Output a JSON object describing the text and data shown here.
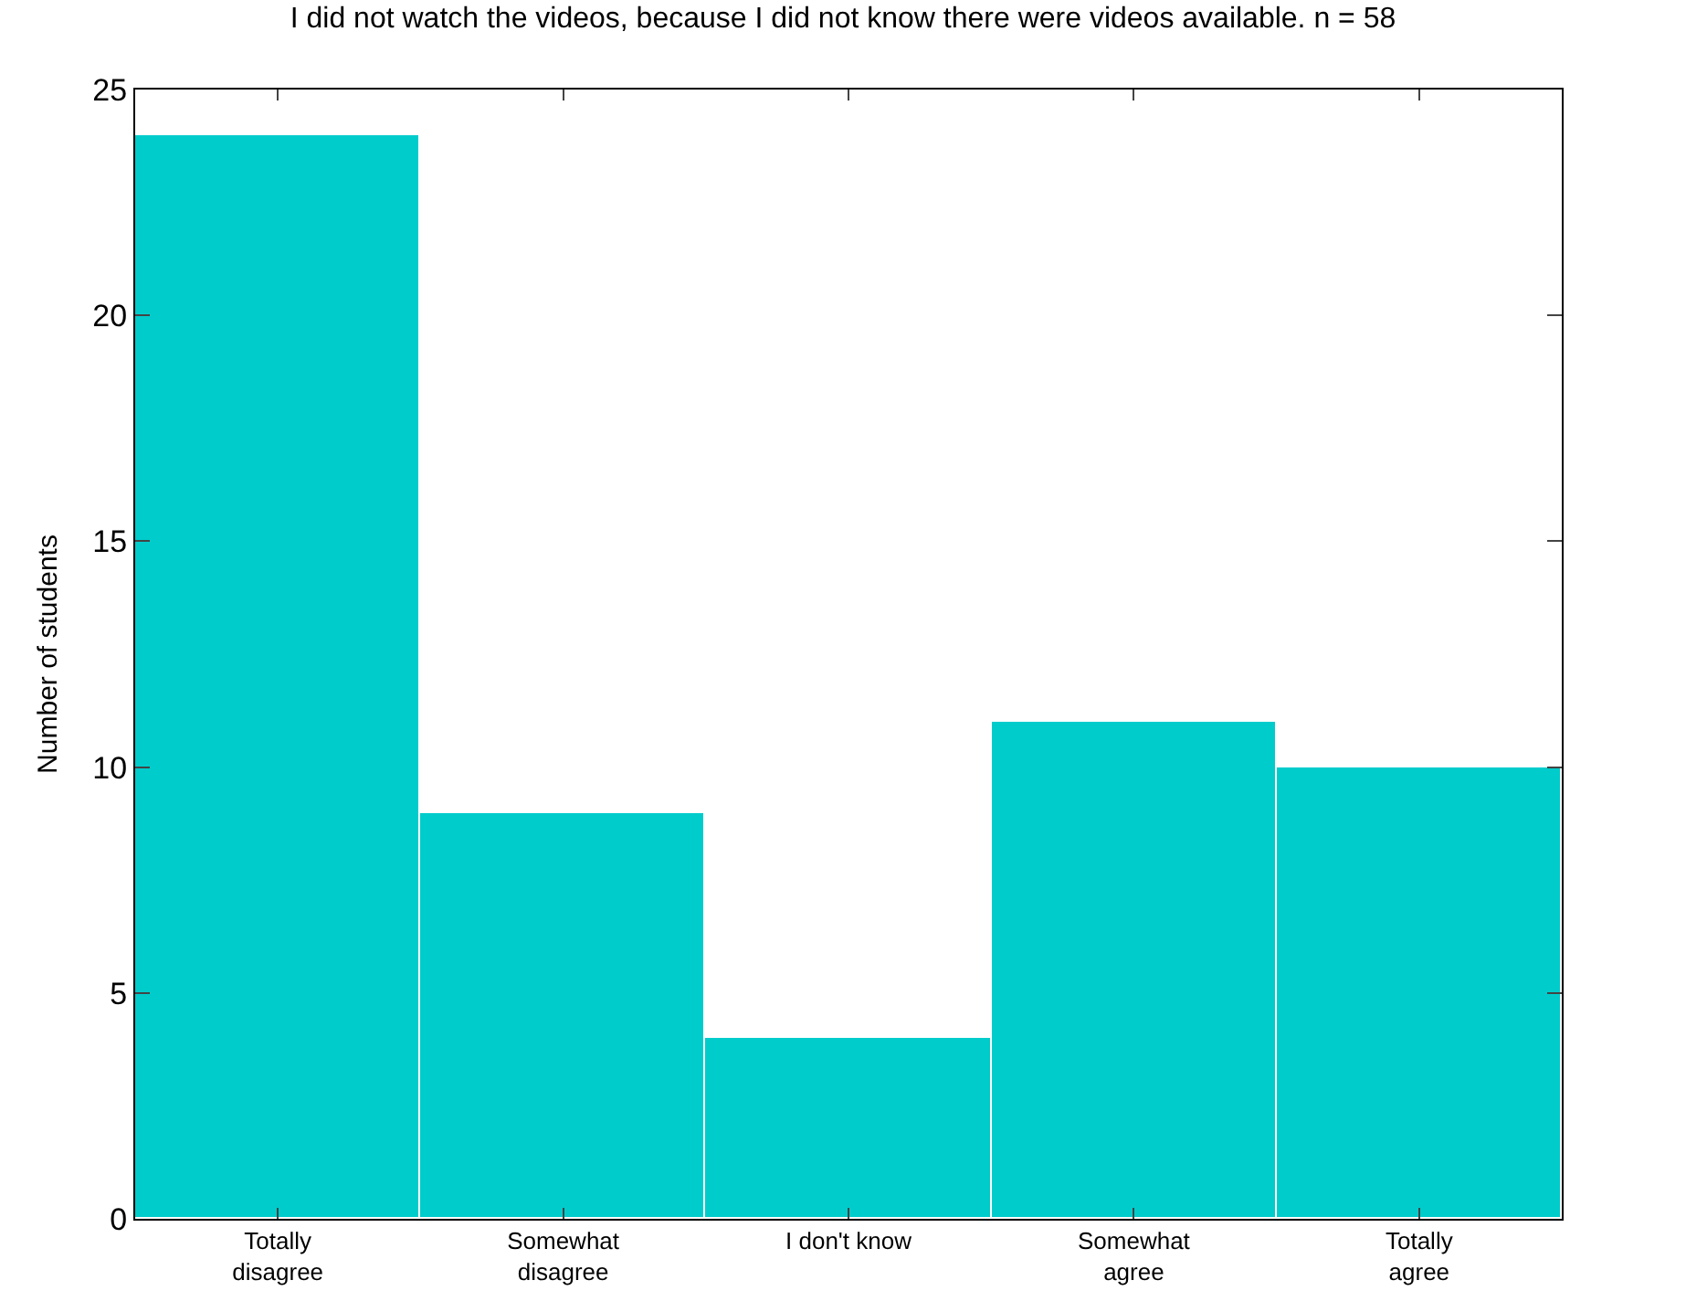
{
  "chart_data": {
    "type": "bar",
    "title": "I did not watch the videos, because I did not know there were videos available. n = 58",
    "ylabel": "Number of students",
    "categories": [
      "Totally\ndisagree",
      "Somewhat\ndisagree",
      "I don't know",
      "Somewhat\nagree",
      "Totally\nagree"
    ],
    "values": [
      24,
      9,
      4,
      11,
      10
    ],
    "color": "#00cccc",
    "ylim": [
      0,
      25
    ],
    "yticks": [
      0,
      5,
      10,
      15,
      20,
      25
    ],
    "grid": false
  }
}
